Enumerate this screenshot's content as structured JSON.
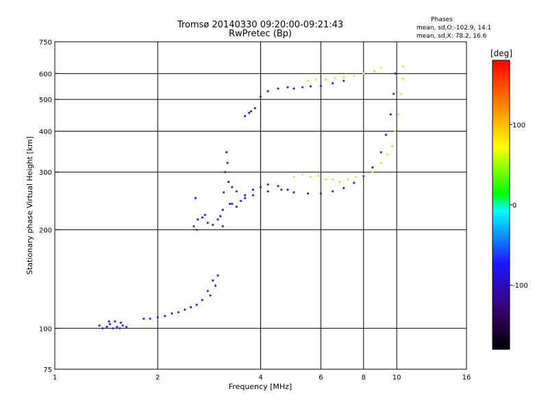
{
  "chart_data": {
    "type": "scatter",
    "title": "Tromsø 20140330 09:20:00-09:21:43",
    "subtitle": "RwPretec (Bp)",
    "xlabel": "Frequency [MHz]",
    "ylabel": "Stationary phase Virtual Height [km]",
    "xscale": "log",
    "yscale": "log",
    "xlim": [
      1,
      16
    ],
    "ylim": [
      75,
      750
    ],
    "xticks": [
      1,
      2,
      4,
      6,
      8,
      10,
      16
    ],
    "yticks": [
      75,
      100,
      200,
      300,
      400,
      500,
      600,
      750
    ],
    "xgrid": [
      2,
      4,
      6,
      8,
      10
    ],
    "ygrid": [
      100,
      200,
      300,
      400,
      500,
      600
    ],
    "grid": true,
    "phase_info": {
      "title": "Phases",
      "line1": "mean, sd,O:-102.9, 14.1",
      "line2": "mean, sd,X:  78.2, 16.6"
    },
    "colorbar": {
      "label": "[deg]",
      "ticks": [
        100,
        0,
        -100
      ],
      "range": [
        -180,
        180
      ],
      "colors": [
        "#000000",
        "#3a0070",
        "#1a1aff",
        "#00ffff",
        "#00ff00",
        "#ffff00",
        "#ff8000",
        "#ff0000"
      ]
    },
    "series": [
      {
        "points": [
          [
            1.35,
            102
          ],
          [
            1.38,
            100
          ],
          [
            1.42,
            101
          ],
          [
            1.45,
            103
          ],
          [
            1.48,
            100
          ],
          [
            1.52,
            101
          ],
          [
            1.55,
            100
          ],
          [
            1.58,
            102
          ],
          [
            1.62,
            101
          ],
          [
            1.44,
            105
          ],
          [
            1.5,
            105
          ],
          [
            1.56,
            104
          ],
          [
            1.82,
            107
          ],
          [
            1.9,
            107
          ],
          [
            2.0,
            108
          ],
          [
            2.1,
            109
          ],
          [
            2.2,
            111
          ],
          [
            2.3,
            112
          ],
          [
            2.4,
            114
          ],
          [
            2.5,
            116
          ],
          [
            2.6,
            118
          ],
          [
            2.7,
            122
          ],
          [
            2.8,
            130
          ],
          [
            2.9,
            140
          ],
          [
            2.85,
            126
          ],
          [
            2.95,
            135
          ],
          [
            3.0,
            145
          ],
          [
            2.55,
            205
          ],
          [
            2.6,
            200
          ],
          [
            2.62,
            215
          ],
          [
            2.7,
            218
          ],
          [
            2.75,
            222
          ],
          [
            2.8,
            210
          ],
          [
            2.9,
            207
          ],
          [
            3.0,
            215
          ],
          [
            3.05,
            220
          ],
          [
            3.1,
            230
          ],
          [
            3.12,
            260
          ],
          [
            3.15,
            300
          ],
          [
            3.18,
            345
          ],
          [
            3.2,
            320
          ],
          [
            3.22,
            280
          ],
          [
            3.25,
            240
          ],
          [
            3.1,
            205
          ],
          [
            2.58,
            250
          ],
          [
            3.3,
            240
          ],
          [
            3.4,
            235
          ],
          [
            3.5,
            245
          ],
          [
            3.6,
            255
          ],
          [
            3.8,
            265
          ],
          [
            4.0,
            270
          ],
          [
            4.2,
            275
          ],
          [
            4.5,
            272
          ],
          [
            4.8,
            265
          ],
          [
            5.0,
            260
          ],
          [
            5.5,
            258
          ],
          [
            6.0,
            258
          ],
          [
            6.5,
            262
          ],
          [
            7.0,
            268
          ],
          [
            7.5,
            278
          ],
          [
            8.0,
            292
          ],
          [
            8.5,
            310
          ],
          [
            9.0,
            345
          ],
          [
            9.3,
            390
          ],
          [
            9.6,
            450
          ],
          [
            9.8,
            520
          ],
          [
            9.9,
            600
          ],
          [
            3.3,
            270
          ],
          [
            3.4,
            262
          ],
          [
            3.6,
            250
          ],
          [
            3.8,
            255
          ],
          [
            4.2,
            262
          ],
          [
            4.6,
            265
          ],
          [
            3.6,
            445
          ],
          [
            3.7,
            455
          ],
          [
            3.75,
            460
          ],
          [
            3.85,
            470
          ],
          [
            4.0,
            510
          ],
          [
            4.2,
            530
          ],
          [
            4.5,
            540
          ],
          [
            4.8,
            545
          ],
          [
            5.0,
            540
          ],
          [
            5.3,
            545
          ],
          [
            5.6,
            548
          ],
          [
            6.0,
            550
          ],
          [
            6.5,
            560
          ],
          [
            7.0,
            570
          ]
        ]
      },
      {
        "points": [
          [
            5.0,
            290
          ],
          [
            5.3,
            295
          ],
          [
            5.6,
            290
          ],
          [
            5.9,
            292
          ],
          [
            6.2,
            285
          ],
          [
            6.5,
            285
          ],
          [
            6.8,
            280
          ],
          [
            7.2,
            285
          ],
          [
            7.6,
            290
          ],
          [
            8.0,
            295
          ],
          [
            8.5,
            300
          ],
          [
            9.0,
            320
          ],
          [
            9.4,
            340
          ],
          [
            9.7,
            360
          ],
          [
            9.9,
            400
          ],
          [
            10.1,
            450
          ],
          [
            10.3,
            520
          ],
          [
            10.4,
            580
          ],
          [
            10.45,
            630
          ],
          [
            5.5,
            570
          ],
          [
            5.8,
            575
          ],
          [
            6.2,
            575
          ],
          [
            6.6,
            580
          ],
          [
            7.0,
            585
          ],
          [
            7.5,
            590
          ],
          [
            8.0,
            600
          ],
          [
            8.6,
            610
          ],
          [
            9.0,
            625
          ]
        ]
      }
    ]
  }
}
